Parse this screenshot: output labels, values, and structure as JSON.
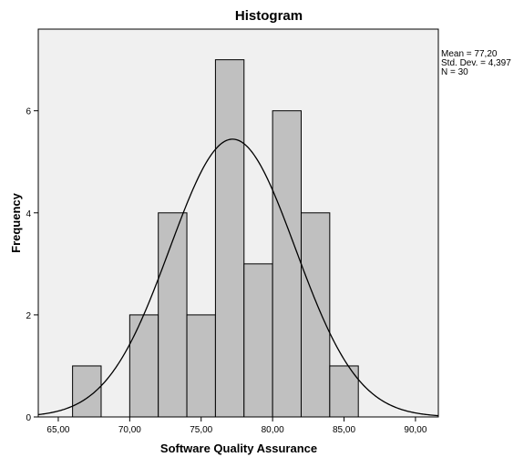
{
  "chart_data": {
    "type": "bar",
    "title": "Histogram",
    "xlabel": "Software Quality Assurance",
    "ylabel": "Frequency",
    "bins": [
      {
        "start": 66,
        "end": 68,
        "count": 1
      },
      {
        "start": 68,
        "end": 70,
        "count": 0
      },
      {
        "start": 70,
        "end": 72,
        "count": 2
      },
      {
        "start": 72,
        "end": 74,
        "count": 4
      },
      {
        "start": 74,
        "end": 76,
        "count": 2
      },
      {
        "start": 76,
        "end": 78,
        "count": 7
      },
      {
        "start": 78,
        "end": 80,
        "count": 3
      },
      {
        "start": 80,
        "end": 82,
        "count": 6
      },
      {
        "start": 82,
        "end": 84,
        "count": 4
      },
      {
        "start": 84,
        "end": 86,
        "count": 1
      }
    ],
    "xlim": [
      63.6,
      91.6
    ],
    "ylim": [
      0,
      7.6
    ],
    "x_ticks": [
      {
        "value": 65,
        "label": "65,00"
      },
      {
        "value": 70,
        "label": "70,00"
      },
      {
        "value": 75,
        "label": "75,00"
      },
      {
        "value": 80,
        "label": "80,00"
      },
      {
        "value": 85,
        "label": "85,00"
      },
      {
        "value": 90,
        "label": "90,00"
      }
    ],
    "y_ticks": [
      {
        "value": 0,
        "label": "0"
      },
      {
        "value": 2,
        "label": "2"
      },
      {
        "value": 4,
        "label": "4"
      },
      {
        "value": 6,
        "label": "6"
      }
    ],
    "normal_curve": {
      "mean": 77.2,
      "std": 4.397,
      "n": 30,
      "bin_width": 2
    },
    "stats": {
      "mean_text": "Mean = 77,20",
      "std_text": "Std. Dev. = 4,397",
      "n_text": "N = 30"
    },
    "grid": false,
    "legend": "top-right",
    "colors": {
      "plot_background": "#f0f0f0",
      "bar_fill": "#c0c0c0",
      "bar_stroke": "#000000",
      "curve": "#000000"
    }
  }
}
